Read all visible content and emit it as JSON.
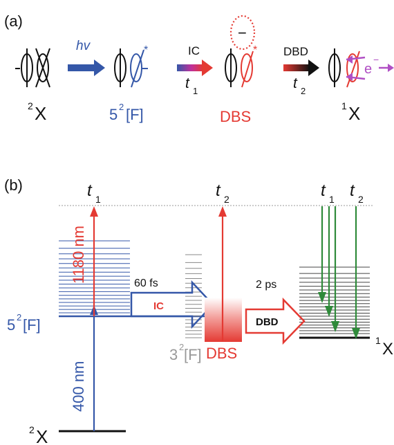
{
  "panel_a": {
    "label": "(a)",
    "hv_label": "hv",
    "ic_label": "IC",
    "dbd_label": "DBD",
    "t1_label": "t",
    "t1_sub": "1",
    "t2_label": "t",
    "t2_sub": "2",
    "state_2x": {
      "sup": "2",
      "text": "X"
    },
    "state_5f": {
      "prefix": "5",
      "sup": "2",
      "text": "[F]"
    },
    "state_dbs": "DBS",
    "state_1x": {
      "sup": "1",
      "text": "X"
    },
    "minus_sign": "−",
    "star": "*",
    "electron_label": "e",
    "electron_sup": "−"
  },
  "panel_b": {
    "label": "(b)",
    "t1_top": {
      "label": "t",
      "sub": "1"
    },
    "t2_top": {
      "label": "t",
      "sub": "2"
    },
    "t1_right": {
      "label": "t",
      "sub": "1"
    },
    "t2_right": {
      "label": "t",
      "sub": "2"
    },
    "wavelength_1180": "1180 nm",
    "wavelength_400": "400 nm",
    "time_60fs": "60 fs",
    "time_2ps": "2 ps",
    "ic_arrow_label": "IC",
    "dbd_arrow_label": "DBD",
    "level_5f": {
      "prefix": "5",
      "sup": "2",
      "text": "[F]"
    },
    "level_3f": {
      "prefix": "3",
      "sup": "2",
      "text": "[F]"
    },
    "level_dbs": "DBS",
    "level_1x": {
      "sup": "1",
      "text": "X"
    },
    "level_2x": {
      "sup": "2",
      "text": "X"
    }
  },
  "colors": {
    "blue": "#3457a8",
    "red": "#e43a33",
    "green": "#2f8a3a",
    "grey": "#999999",
    "black": "#111111",
    "magenta": "#b04fc4"
  }
}
